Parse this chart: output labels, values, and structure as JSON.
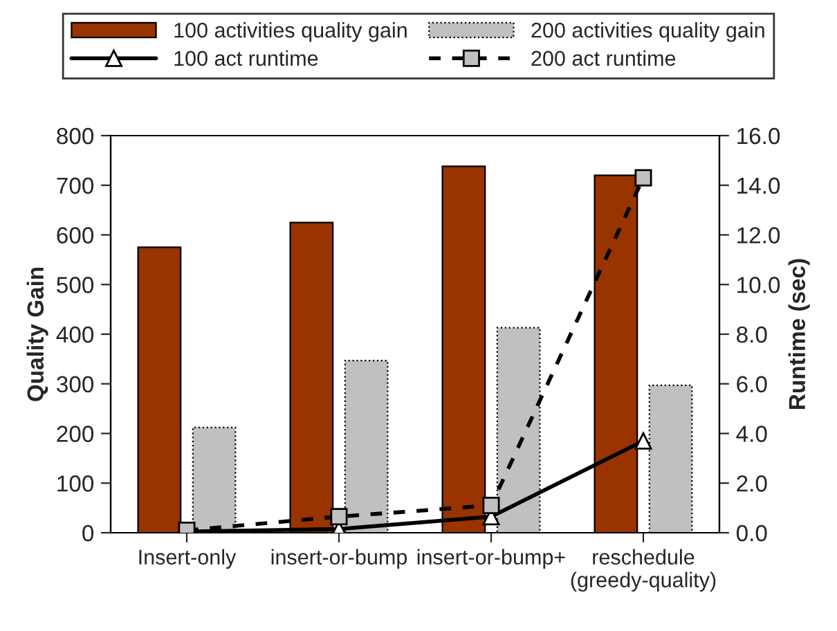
{
  "chart_data": {
    "type": "bar",
    "categories": [
      "Insert-only",
      "insert-or-bump",
      "insert-or-bump+",
      "reschedule\n(greedy-quality)"
    ],
    "ylabel": "Quality Gain",
    "y2label": "Runtime (sec)",
    "ylim": [
      0,
      800
    ],
    "yticks": [
      0,
      100,
      200,
      300,
      400,
      500,
      600,
      700,
      800
    ],
    "y2lim": [
      0,
      16
    ],
    "y2ticks": [
      {
        "value": 0,
        "label": "0.0"
      },
      {
        "value": 2,
        "label": "2.0"
      },
      {
        "value": 4,
        "label": "4.0"
      },
      {
        "value": 6,
        "label": "6.0"
      },
      {
        "value": 8,
        "label": "8.0"
      },
      {
        "value": 10,
        "label": "10.0"
      },
      {
        "value": 12,
        "label": "12.0"
      },
      {
        "value": 14,
        "label": "14.0"
      },
      {
        "value": 16,
        "label": "16.0"
      }
    ],
    "legend": "top",
    "grid": false,
    "series": [
      {
        "name": "100 activities quality gain",
        "color": "#993300",
        "values": [
          575,
          625,
          738,
          720
        ]
      },
      {
        "name": "200 activities quality gain",
        "color": "#c0c0c0",
        "values": [
          212,
          347,
          413,
          297
        ]
      },
      {
        "name": "100 act runtime",
        "type": "line",
        "axis": "y2",
        "color": "#000000",
        "marker": "triangle",
        "line_style": "solid",
        "values": [
          0.05,
          0.15,
          0.65,
          3.7
        ]
      },
      {
        "name": "200 act runtime",
        "type": "line",
        "axis": "y2",
        "color": "#000000",
        "marker": "square",
        "line_style": "dashed",
        "values": [
          0.1,
          0.65,
          1.1,
          14.3
        ]
      }
    ]
  }
}
